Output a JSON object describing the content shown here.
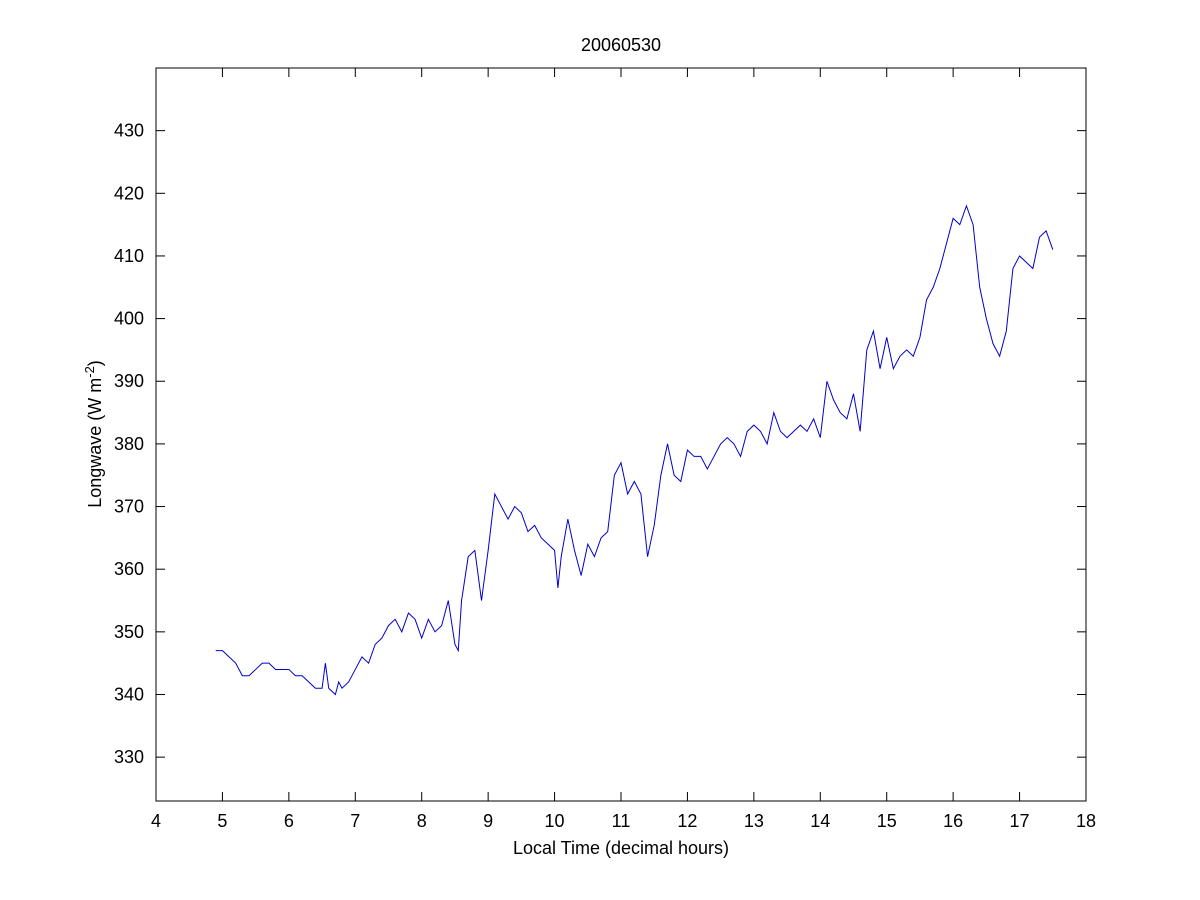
{
  "chart_data": {
    "type": "line",
    "title": "20060530",
    "xlabel": "Local Time (decimal hours)",
    "ylabel": {
      "prefix": "Longwave (W m",
      "superscript": "-2",
      "suffix": ")"
    },
    "xlim": [
      4,
      18
    ],
    "ylim": [
      323,
      440
    ],
    "xticks": [
      4,
      5,
      6,
      7,
      8,
      9,
      10,
      11,
      12,
      13,
      14,
      15,
      16,
      17,
      18
    ],
    "yticks": [
      330,
      340,
      350,
      360,
      370,
      380,
      390,
      400,
      410,
      420,
      430
    ],
    "grid": false,
    "line_color": "#0000cc",
    "frame_color": "#000000",
    "series": [
      {
        "x": [
          4.9,
          5.0,
          5.1,
          5.2,
          5.3,
          5.4,
          5.5,
          5.6,
          5.7,
          5.8,
          5.9,
          6.0,
          6.1,
          6.2,
          6.3,
          6.4,
          6.5,
          6.55,
          6.6,
          6.7,
          6.75,
          6.8,
          6.9,
          7.0,
          7.1,
          7.2,
          7.3,
          7.4,
          7.5,
          7.6,
          7.7,
          7.8,
          7.9,
          8.0,
          8.1,
          8.2,
          8.3,
          8.4,
          8.5,
          8.55,
          8.6,
          8.7,
          8.8,
          8.9,
          9.0,
          9.1,
          9.2,
          9.3,
          9.4,
          9.5,
          9.6,
          9.7,
          9.8,
          9.9,
          10.0,
          10.05,
          10.1,
          10.2,
          10.3,
          10.4,
          10.5,
          10.6,
          10.7,
          10.8,
          10.9,
          11.0,
          11.1,
          11.2,
          11.3,
          11.4,
          11.5,
          11.6,
          11.7,
          11.8,
          11.9,
          12.0,
          12.1,
          12.2,
          12.3,
          12.4,
          12.5,
          12.6,
          12.7,
          12.8,
          12.9,
          13.0,
          13.1,
          13.2,
          13.3,
          13.4,
          13.5,
          13.6,
          13.7,
          13.8,
          13.9,
          14.0,
          14.1,
          14.2,
          14.3,
          14.4,
          14.5,
          14.6,
          14.7,
          14.8,
          14.9,
          15.0,
          15.1,
          15.2,
          15.3,
          15.4,
          15.5,
          15.6,
          15.7,
          15.8,
          15.9,
          16.0,
          16.1,
          16.2,
          16.3,
          16.4,
          16.5,
          16.6,
          16.7,
          16.8,
          16.9,
          17.0,
          17.1,
          17.2,
          17.3,
          17.4,
          17.5
        ],
        "y": [
          347,
          347,
          346,
          345,
          343,
          343,
          344,
          345,
          345,
          344,
          344,
          344,
          343,
          343,
          342,
          341,
          341,
          345,
          341,
          340,
          342,
          341,
          342,
          344,
          346,
          345,
          348,
          349,
          351,
          352,
          350,
          353,
          352,
          349,
          352,
          350,
          351,
          355,
          348,
          347,
          355,
          362,
          363,
          355,
          363,
          372,
          370,
          368,
          370,
          369,
          366,
          367,
          365,
          364,
          363,
          357,
          362,
          368,
          363,
          359,
          364,
          362,
          365,
          366,
          375,
          377,
          372,
          374,
          372,
          362,
          367,
          375,
          380,
          375,
          374,
          379,
          378,
          378,
          376,
          378,
          380,
          381,
          380,
          378,
          382,
          383,
          382,
          380,
          385,
          382,
          381,
          382,
          383,
          382,
          384,
          381,
          390,
          387,
          385,
          384,
          388,
          382,
          395,
          398,
          392,
          397,
          392,
          394,
          395,
          394,
          397,
          403,
          405,
          408,
          412,
          416,
          415,
          418,
          415,
          405,
          400,
          396,
          394,
          398,
          408,
          410,
          409,
          408,
          413,
          414,
          411
        ]
      }
    ]
  }
}
